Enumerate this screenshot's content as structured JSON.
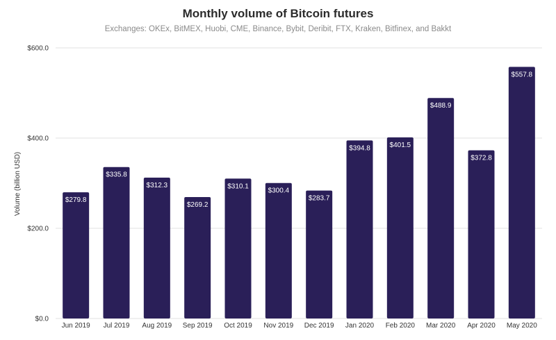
{
  "chart_data": {
    "type": "bar",
    "title": "Monthly volume of Bitcoin futures",
    "subtitle": "Exchanges: OKEx, BitMEX, Huobi, CME, Binance, Bybit, Deribit, FTX, Kraken, Bitfinex, and Bakkt",
    "xlabel": "",
    "ylabel": "Volume (billion USD)",
    "ylim": [
      0,
      600
    ],
    "yticks": [
      0,
      200,
      400,
      600
    ],
    "ytick_labels": [
      "$0.0",
      "$200.0",
      "$400.0",
      "$600.0"
    ],
    "grid": true,
    "categories": [
      "Jun 2019",
      "Jul 2019",
      "Aug 2019",
      "Sep 2019",
      "Oct 2019",
      "Nov 2019",
      "Dec 2019",
      "Jan 2020",
      "Feb 2020",
      "Mar 2020",
      "Apr 2020",
      "May 2020"
    ],
    "values": [
      279.8,
      335.8,
      312.3,
      269.2,
      310.1,
      300.4,
      283.7,
      394.8,
      401.5,
      488.9,
      372.8,
      557.8
    ],
    "data_labels": [
      "$279.8",
      "$335.8",
      "$312.3",
      "$269.2",
      "$310.1",
      "$300.4",
      "$283.7",
      "$394.8",
      "$401.5",
      "$488.9",
      "$372.8",
      "$557.8"
    ],
    "colors": {
      "bar": "#2a1f58",
      "grid": "#e0e0e0",
      "label_text": "#ffffff"
    }
  }
}
